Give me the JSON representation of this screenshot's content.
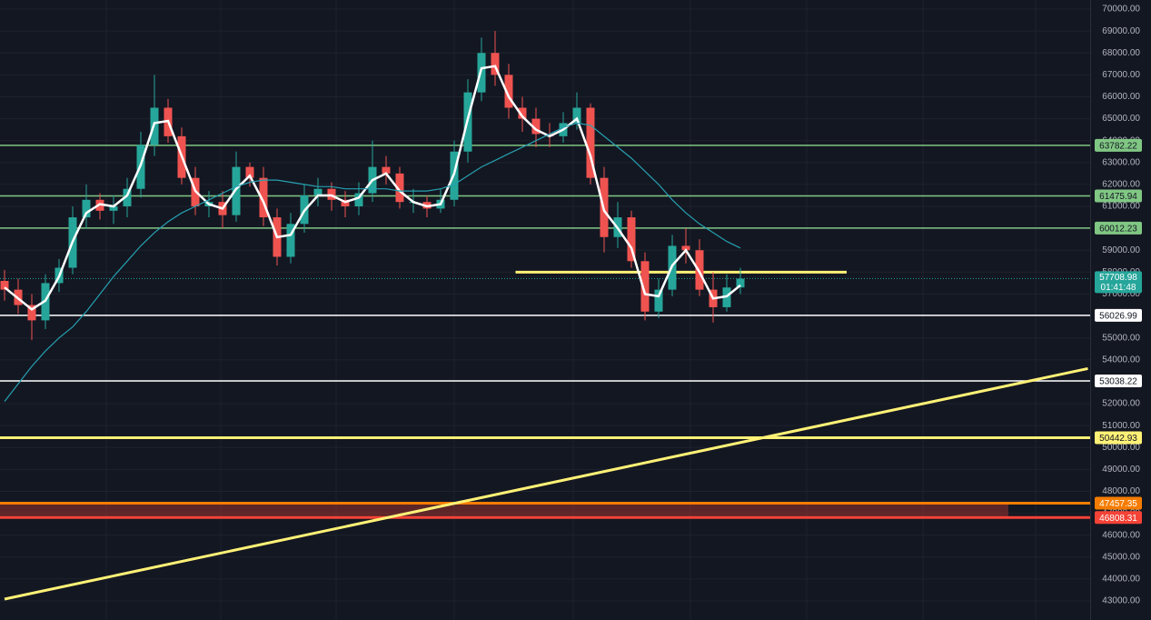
{
  "chart_data": {
    "type": "candlestick",
    "xlim": [
      -0.333,
      79.667
    ],
    "ylim": [
      42130,
      70415
    ],
    "yticks": [
      {
        "value": 70000,
        "label": "70000.00"
      },
      {
        "value": 69000,
        "label": "69000.00"
      },
      {
        "value": 68000,
        "label": "68000.00"
      },
      {
        "value": 67000,
        "label": "67000.00"
      },
      {
        "value": 66000,
        "label": "66000.00"
      },
      {
        "value": 65000,
        "label": "65000.00"
      },
      {
        "value": 64000,
        "label": "64000.00"
      },
      {
        "value": 63000,
        "label": "63000.00"
      },
      {
        "value": 62000,
        "label": "62000.00"
      },
      {
        "value": 61000,
        "label": "61000.00"
      },
      {
        "value": 60000,
        "label": "60000.00"
      },
      {
        "value": 59000,
        "label": "59000.00"
      },
      {
        "value": 58000,
        "label": "58000.00"
      },
      {
        "value": 57000,
        "label": "57000.00"
      },
      {
        "value": 56000,
        "label": "56000.00"
      },
      {
        "value": 55000,
        "label": "55000.00"
      },
      {
        "value": 54000,
        "label": "54000.00"
      },
      {
        "value": 53000,
        "label": "53000.00"
      },
      {
        "value": 52000,
        "label": "52000.00"
      },
      {
        "value": 51000,
        "label": "51000.00"
      },
      {
        "value": 50000,
        "label": "50000.00"
      },
      {
        "value": 49000,
        "label": "49000.00"
      },
      {
        "value": 48000,
        "label": "48000.00"
      },
      {
        "value": 47000,
        "label": "47000.00"
      },
      {
        "value": 46000,
        "label": "46000.00"
      },
      {
        "value": 45000,
        "label": "45000.00"
      },
      {
        "value": 44000,
        "label": "44000.00"
      },
      {
        "value": 43000,
        "label": "43000.00"
      }
    ],
    "grid": true,
    "up_color": "#26a69a",
    "down_color": "#ef5350",
    "open": [
      57600,
      57200,
      56500,
      55800,
      57500,
      58200,
      60500,
      61300,
      60800,
      61000,
      61800,
      63800,
      65500,
      64200,
      62300,
      61000,
      61200,
      60600,
      62800,
      62300,
      60500,
      58700,
      60200,
      61500,
      61800,
      61300,
      61000,
      61600,
      62800,
      62500,
      61200,
      61200,
      60900,
      61300,
      63500,
      66200,
      68000,
      67000,
      65500,
      65000,
      64300,
      64200,
      64800,
      65500,
      62300,
      59600,
      60500,
      58500,
      56200,
      57200,
      59200,
      59000,
      57200,
      56400,
      57300
    ],
    "high": [
      58100,
      57700,
      57000,
      57900,
      58600,
      61000,
      62000,
      61600,
      61500,
      62300,
      64400,
      67000,
      65900,
      64600,
      62800,
      61700,
      61700,
      63500,
      63000,
      62800,
      60900,
      60700,
      62000,
      62300,
      62100,
      61700,
      62100,
      64000,
      63300,
      62800,
      61800,
      61500,
      61800,
      64000,
      66800,
      68700,
      69000,
      67500,
      66000,
      65500,
      64800,
      65300,
      66200,
      65700,
      62800,
      61200,
      60800,
      58900,
      57700,
      59700,
      60000,
      59500,
      58000,
      57900,
      58200
    ],
    "low": [
      56700,
      56100,
      54900,
      55400,
      57100,
      57900,
      60000,
      60400,
      60200,
      60500,
      61400,
      63300,
      63900,
      62000,
      60600,
      60500,
      60000,
      60300,
      61900,
      60100,
      58300,
      58400,
      59800,
      61000,
      60800,
      60500,
      60600,
      61200,
      62000,
      60900,
      60700,
      60500,
      60700,
      61000,
      63000,
      65800,
      66500,
      65000,
      64400,
      63700,
      63700,
      63900,
      64500,
      62000,
      58900,
      59100,
      58200,
      55800,
      55900,
      56900,
      58400,
      56900,
      55700,
      56200,
      57000
    ],
    "close": [
      57200,
      56500,
      55800,
      57500,
      58200,
      60500,
      61300,
      60800,
      61000,
      61800,
      63800,
      65500,
      64200,
      62300,
      61000,
      61200,
      60600,
      62800,
      62300,
      60500,
      58700,
      60200,
      61500,
      61800,
      61300,
      61000,
      61600,
      62800,
      62500,
      61200,
      61200,
      60900,
      61300,
      63500,
      66200,
      68000,
      67000,
      65500,
      65000,
      64300,
      64200,
      64800,
      65500,
      62300,
      59600,
      60500,
      58500,
      56200,
      57200,
      59200,
      59000,
      57200,
      56400,
      57300,
      57700
    ],
    "series": [
      {
        "color": "#ffffff",
        "values": [
          57300,
          56800,
          56300,
          56700,
          57800,
          59400,
          60700,
          61100,
          61000,
          61500,
          62900,
          64800,
          64900,
          63300,
          61700,
          61100,
          60900,
          61800,
          62400,
          61200,
          59600,
          59700,
          60800,
          61500,
          61500,
          61200,
          61400,
          62200,
          62500,
          61700,
          61200,
          61000,
          61100,
          62500,
          65000,
          67300,
          67400,
          66000,
          65100,
          64500,
          64200,
          64500,
          65000,
          63300,
          60800,
          60000,
          59100,
          57000,
          56900,
          58300,
          59000,
          58000,
          56800,
          56900,
          57400
        ]
      },
      {
        "color": "#26a0b0",
        "values": [
          52100,
          52900,
          53700,
          54400,
          55000,
          55500,
          56200,
          57000,
          57800,
          58500,
          59200,
          59800,
          60300,
          60700,
          61000,
          61300,
          61600,
          61900,
          62100,
          62200,
          62200,
          62100,
          62000,
          61900,
          61900,
          61800,
          61800,
          61800,
          61800,
          61700,
          61700,
          61700,
          61800,
          62000,
          62400,
          62800,
          63100,
          63400,
          63700,
          64000,
          64300,
          64600,
          64800,
          64700,
          64200,
          63700,
          63200,
          62600,
          62000,
          61300,
          60700,
          60200,
          59800,
          59400,
          59100
        ]
      }
    ],
    "levels": [
      {
        "value": 63782.22,
        "color": "#81c784"
      },
      {
        "value": 61475.94,
        "color": "#81c784"
      },
      {
        "value": 60012.23,
        "color": "#81c784"
      },
      {
        "value": 56026.99,
        "color": "#ffffff"
      },
      {
        "value": 53038.22,
        "color": "#ffffff"
      },
      {
        "value": 50442.93,
        "color": "#fff176"
      },
      {
        "value": 47457.35,
        "color": "#f57c00"
      },
      {
        "value": 46808.31,
        "color": "#f44336"
      }
    ],
    "last_price": 57708.98,
    "countdown": "01:41:48",
    "last_color": "#26a69a",
    "trendlines": [
      {
        "x": [
          37.5,
          61.8
        ],
        "y": [
          58000,
          58000
        ],
        "color": "#fff176"
      },
      {
        "x": [
          0,
          79.5
        ],
        "y": [
          43083,
          53600
        ],
        "color": "#fff176"
      }
    ]
  }
}
